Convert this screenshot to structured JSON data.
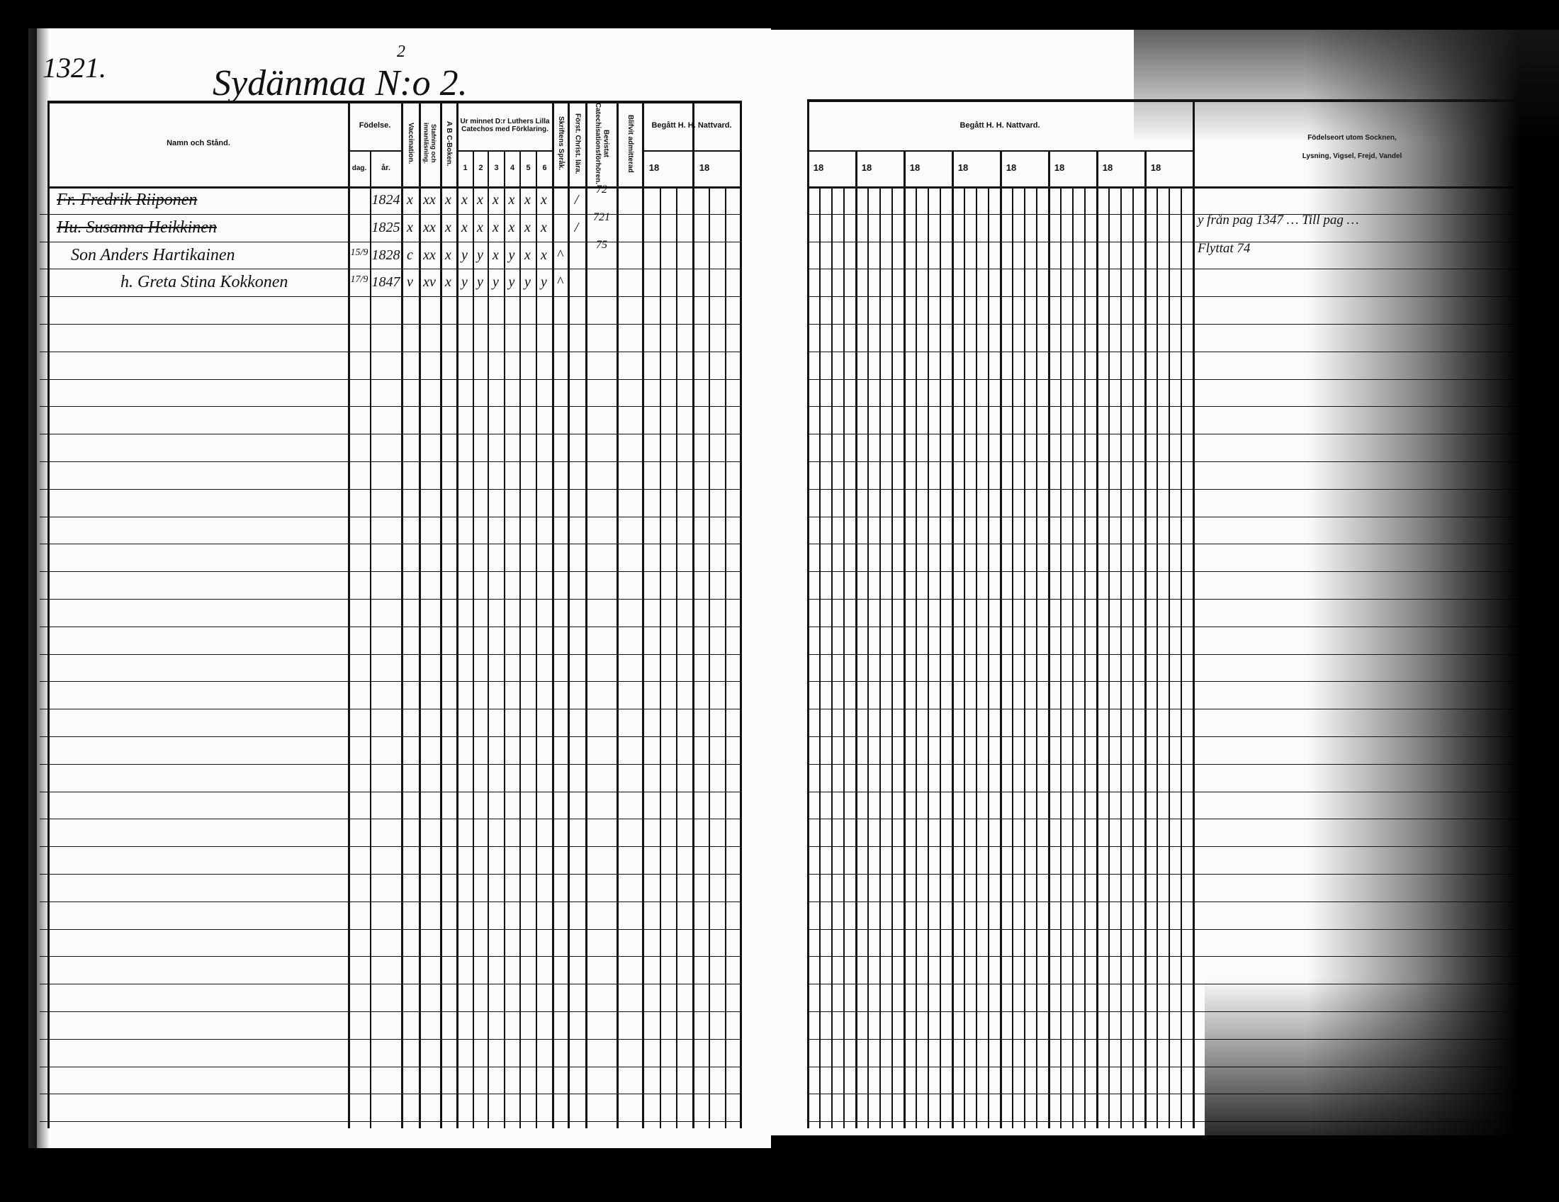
{
  "page": {
    "page_number": "1321.",
    "village_title": "Sydänmaa N:o 2.",
    "title_superscript": "2"
  },
  "left_header": {
    "name": "Namn och Stånd.",
    "birth": "Födelse.",
    "birth_day": "dag.",
    "birth_year": "år.",
    "vaccination": "Vaccination.",
    "reading": "Stafning och innanläsning.",
    "abc": "A B C-Boken.",
    "catechism": "Ur minnet D:r Luthers Lilla Catechos med Förklaring.",
    "catechism_cols": [
      "1",
      "2",
      "3",
      "4",
      "5",
      "6"
    ],
    "scripture": "Skriftens Språk.",
    "christian": "Först. Christ. lära.",
    "catechisation": "Bevistat Catechisationsförhören.",
    "admitted": "Blifvit admitterad",
    "communion": "Begått H. H. Nattvard.",
    "communion_years": [
      "18",
      "18"
    ]
  },
  "right_header": {
    "communion": "Begått H. H. Nattvard.",
    "communion_years": [
      "18",
      "18",
      "18",
      "18",
      "18",
      "18",
      "18",
      "18"
    ],
    "remarks_line1": "Födelseort utom Socknen,",
    "remarks_line2": "Lysning, Vigsel, Frejd, Vandel"
  },
  "entries": [
    {
      "name": "Fr. Fredrik Riiponen",
      "struck": true,
      "day": "",
      "year": "1824",
      "marks": [
        "x",
        "xx",
        "x",
        "x",
        "x",
        "x",
        "x",
        "x",
        "x",
        "",
        "/"
      ],
      "catechisation": "72"
    },
    {
      "name": "Hu. Susanna Heikkinen",
      "struck": true,
      "day": "",
      "year": "1825",
      "marks": [
        "x",
        "xx",
        "x",
        "x",
        "x",
        "x",
        "x",
        "x",
        "x",
        "",
        "/"
      ],
      "catechisation": "721"
    },
    {
      "name": "Son Anders Hartikainen",
      "struck": false,
      "day": "15/9",
      "year": "1828",
      "marks": [
        "c",
        "xx",
        "x",
        "y",
        "y",
        "x",
        "y",
        "x",
        "x",
        "^",
        ""
      ],
      "catechisation": "75"
    },
    {
      "name": "h. Greta Stina Kokkonen",
      "struck": false,
      "day": "17/9",
      "year": "1847",
      "marks": [
        "v",
        "xv",
        "x",
        "y",
        "y",
        "y",
        "y",
        "y",
        "y",
        "^",
        ""
      ],
      "catechisation": ""
    }
  ],
  "remarks": [
    "y från pag 1347 … Till pag …",
    "Flyttat 74"
  ]
}
